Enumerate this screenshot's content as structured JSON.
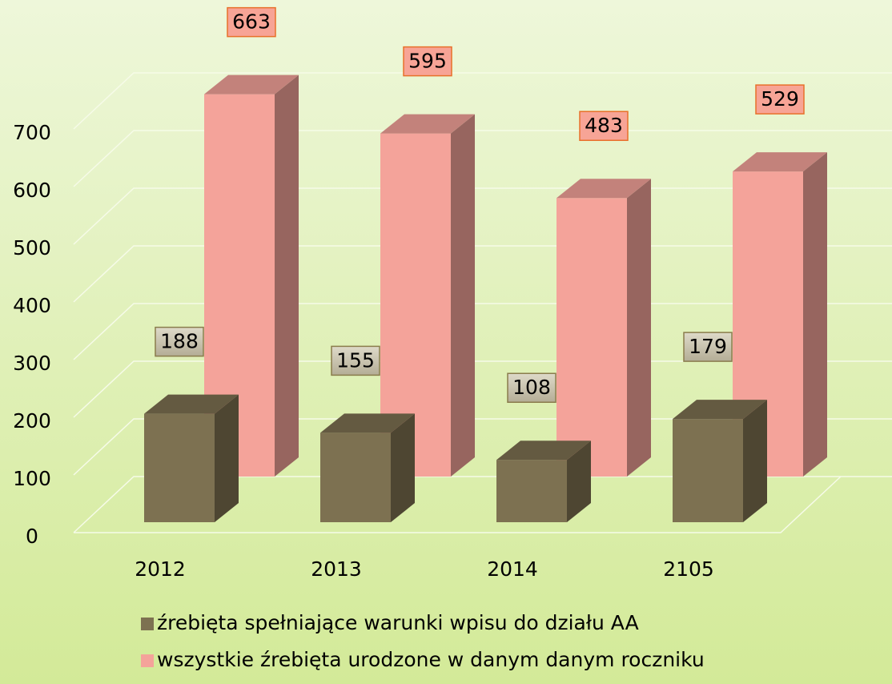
{
  "chart_data": {
    "type": "bar3d",
    "categories": [
      "2012",
      "2013",
      "2014",
      "2105"
    ],
    "series": [
      {
        "name": "źrebięta spełniające warunki wpisu do działu AA",
        "color": "#7d7151",
        "values": [
          188,
          155,
          108,
          179
        ]
      },
      {
        "name": "wszystkie źrebięta urodzone w danym danym roczniku",
        "color": "#f4a39a",
        "values": [
          663,
          595,
          483,
          529
        ]
      }
    ],
    "ylim": [
      0,
      700
    ],
    "yticks": [
      0,
      100,
      200,
      300,
      400,
      500,
      600,
      700
    ],
    "grid": true
  }
}
